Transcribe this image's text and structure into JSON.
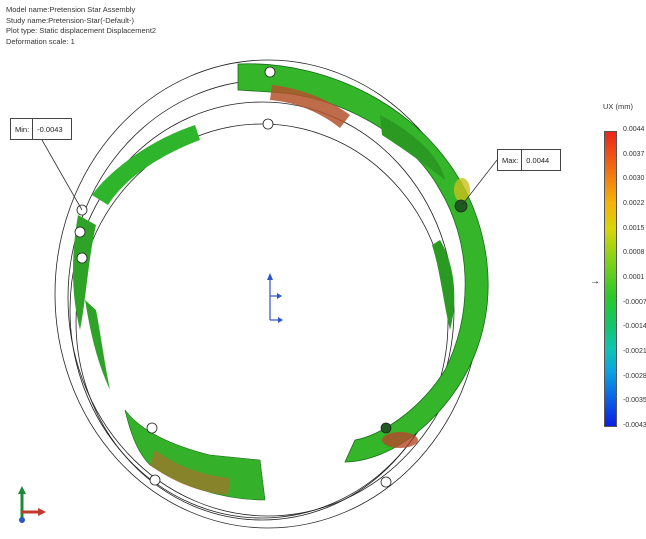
{
  "header": {
    "model_name": "Model name:Pretension Star Assembly",
    "study_name": "Study name:Pretension-Star(-Default-)",
    "plot_type": "Plot type: Static displacement Displacement2",
    "deformation_scale": "Deformation scale: 1"
  },
  "min_callout": {
    "label": "Min:",
    "value": "-0.0043"
  },
  "max_callout": {
    "label": "Max:",
    "value": "0.0044"
  },
  "legend": {
    "title": "UX (mm)",
    "ticks": [
      "0.0044",
      "0.0037",
      "0.0030",
      "0.0022",
      "0.0015",
      "0.0008",
      "0.0001",
      "-0.0007",
      "-0.0014",
      "-0.0021",
      "-0.0028",
      "-0.0035",
      "-0.0043"
    ],
    "current_marker": "→"
  },
  "colors": {
    "model_green": "#2fb52b",
    "dark_green": "#1c8a1c",
    "hot_red": "#b0462a",
    "outline": "#222222",
    "triad_x": "#c0392b",
    "triad_y": "#1d8a3a",
    "triad_z": "#2b55c9"
  }
}
